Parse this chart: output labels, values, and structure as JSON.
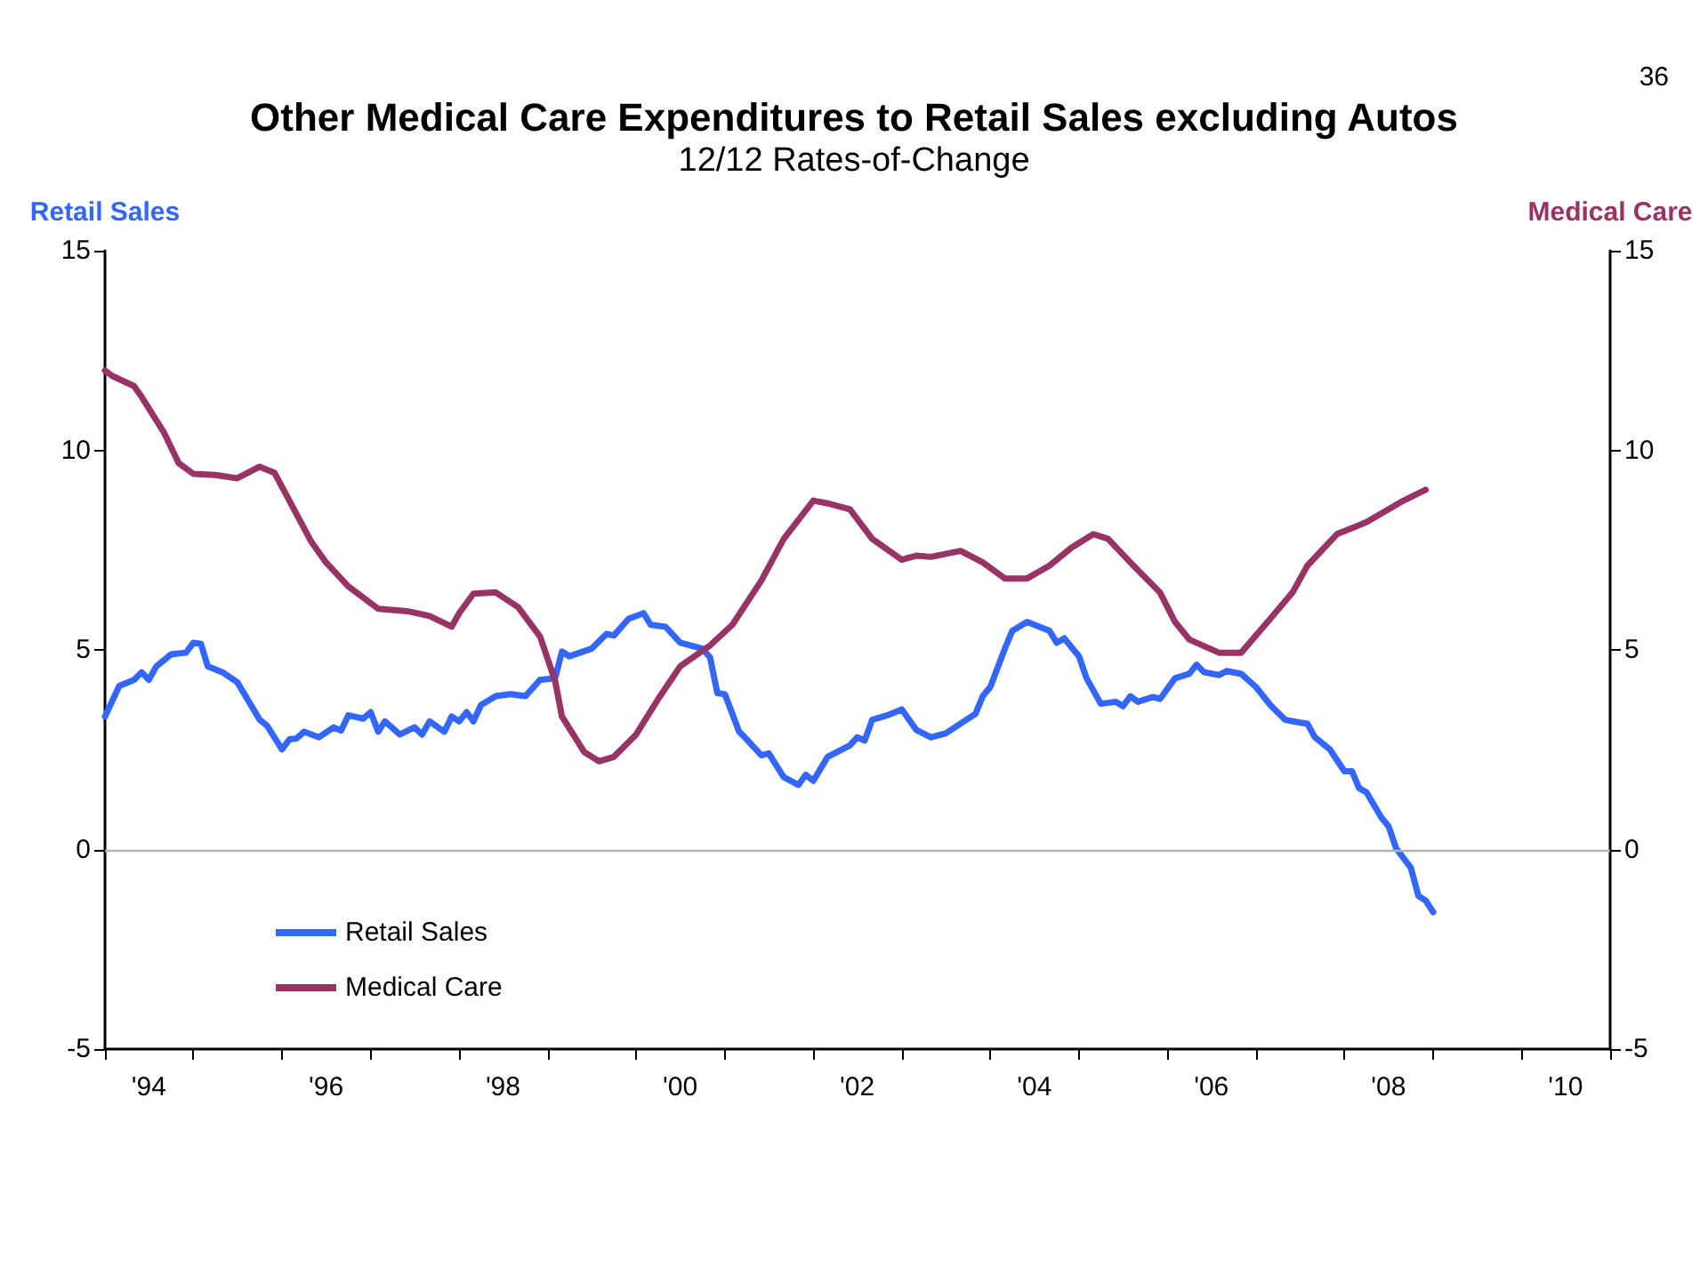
{
  "chart_data": {
    "type": "line",
    "title": "Other Medical Care Expenditures to Retail Sales excluding Autos",
    "subtitle": "12/12 Rates-of-Change",
    "ylabel": "Retail Sales",
    "y2label": "Medical Care",
    "annotations": [
      "36"
    ],
    "xlim": [
      "1994-01",
      "2011-01"
    ],
    "xticks": [
      {
        "value": "1994",
        "label": null
      },
      {
        "value": "1994-07",
        "label": "'94"
      },
      {
        "value": "1995",
        "label": null
      },
      {
        "value": "1996",
        "label": null
      },
      {
        "value": "1996-07",
        "label": "'96"
      },
      {
        "value": "1997",
        "label": null
      },
      {
        "value": "1998",
        "label": null
      },
      {
        "value": "1998-07",
        "label": "'98"
      },
      {
        "value": "1999",
        "label": null
      },
      {
        "value": "2000",
        "label": null
      },
      {
        "value": "2000-07",
        "label": "'00"
      },
      {
        "value": "2001",
        "label": null
      },
      {
        "value": "2002",
        "label": null
      },
      {
        "value": "2002-07",
        "label": "'02"
      },
      {
        "value": "2003",
        "label": null
      },
      {
        "value": "2004",
        "label": null
      },
      {
        "value": "2004-07",
        "label": "'04"
      },
      {
        "value": "2005",
        "label": null
      },
      {
        "value": "2006",
        "label": null
      },
      {
        "value": "2006-07",
        "label": "'06"
      },
      {
        "value": "2007",
        "label": null
      },
      {
        "value": "2008",
        "label": null
      },
      {
        "value": "2008-07",
        "label": "'08"
      },
      {
        "value": "2009",
        "label": null
      },
      {
        "value": "2010",
        "label": null
      },
      {
        "value": "2010-07",
        "label": "'10"
      },
      {
        "value": "2011",
        "label": null
      }
    ],
    "ylim": [
      -5,
      15
    ],
    "yticks": [
      -5,
      0,
      5,
      10,
      15
    ],
    "y2lim": [
      -5,
      15
    ],
    "y2ticks": [
      -5,
      0,
      5,
      10,
      15
    ],
    "grid": false,
    "legend": "bottom left",
    "marker": "none",
    "line_style": "solid",
    "ref_lines": [
      {
        "axis": "y",
        "value": 0,
        "label": null,
        "color": "#b4b4b4"
      }
    ],
    "series": [
      {
        "name": "Retail Sales",
        "color": "#3366ff",
        "x": [
          "1994-01",
          "1994-03",
          "1994-05",
          "1994-06",
          "1994-07",
          "1994-08",
          "1994-10",
          "1994-12",
          "1995-01",
          "1995-02",
          "1995-03",
          "1995-05",
          "1995-07",
          "1995-10",
          "1995-11",
          "1996-01",
          "1996-02",
          "1996-03",
          "1996-04",
          "1996-06",
          "1996-08",
          "1996-09",
          "1996-10",
          "1996-12",
          "1997-01",
          "1997-02",
          "1997-03",
          "1997-05",
          "1997-07",
          "1997-08",
          "1997-09",
          "1997-11",
          "1997-12",
          "1998-01",
          "1998-02",
          "1998-03",
          "1998-04",
          "1998-06",
          "1998-08",
          "1998-10",
          "1998-12",
          "1999-02",
          "1999-03",
          "1999-04",
          "1999-07",
          "1999-09",
          "1999-10",
          "1999-12",
          "2000-02",
          "2000-03",
          "2000-05",
          "2000-07",
          "2000-10",
          "2000-11",
          "2000-12",
          "2001-01",
          "2001-03",
          "2001-04",
          "2001-06",
          "2001-07",
          "2001-09",
          "2001-11",
          "2001-12",
          "2002-01",
          "2002-03",
          "2002-06",
          "2002-07",
          "2002-08",
          "2002-09",
          "2002-11",
          "2003-01",
          "2003-03",
          "2003-05",
          "2003-07",
          "2003-11",
          "2003-12",
          "2004-01",
          "2004-03",
          "2004-04",
          "2004-06",
          "2004-09",
          "2004-10",
          "2004-11",
          "2005-01",
          "2005-02",
          "2005-04",
          "2005-06",
          "2005-07",
          "2005-08",
          "2005-09",
          "2005-11",
          "2005-12",
          "2006-02",
          "2006-04",
          "2006-05",
          "2006-06",
          "2006-08",
          "2006-09",
          "2006-11",
          "2007-01",
          "2007-03",
          "2007-05",
          "2007-07",
          "2007-08",
          "2007-09",
          "2007-11",
          "2008-01",
          "2008-02",
          "2008-03",
          "2008-04",
          "2008-06",
          "2008-07",
          "2008-08",
          "2008-10",
          "2008-11",
          "2008-12",
          "2009-01"
        ],
        "values": [
          3.33,
          4.1,
          4.25,
          4.44,
          4.25,
          4.59,
          4.89,
          4.93,
          5.18,
          5.15,
          4.59,
          4.44,
          4.19,
          3.25,
          3.1,
          2.51,
          2.76,
          2.78,
          2.95,
          2.81,
          3.06,
          2.98,
          3.36,
          3.28,
          3.44,
          2.95,
          3.21,
          2.88,
          3.06,
          2.88,
          3.21,
          2.95,
          3.33,
          3.21,
          3.44,
          3.21,
          3.62,
          3.84,
          3.89,
          3.84,
          4.25,
          4.29,
          4.96,
          4.84,
          5.03,
          5.4,
          5.36,
          5.78,
          5.92,
          5.63,
          5.58,
          5.18,
          5.03,
          4.81,
          3.92,
          3.89,
          2.95,
          2.76,
          2.36,
          2.41,
          1.81,
          1.62,
          1.87,
          1.72,
          2.32,
          2.61,
          2.81,
          2.73,
          3.25,
          3.36,
          3.51,
          3.0,
          2.81,
          2.91,
          3.4,
          3.84,
          4.07,
          5.03,
          5.48,
          5.7,
          5.48,
          5.18,
          5.29,
          4.84,
          4.29,
          3.65,
          3.7,
          3.59,
          3.84,
          3.7,
          3.82,
          3.77,
          4.29,
          4.4,
          4.63,
          4.44,
          4.37,
          4.47,
          4.4,
          4.07,
          3.62,
          3.25,
          3.18,
          3.15,
          2.81,
          2.51,
          1.96,
          1.96,
          1.54,
          1.43,
          0.8,
          0.58,
          0.03,
          -0.46,
          -1.16,
          -1.28,
          -1.57
        ]
      },
      {
        "name": "Medical Care",
        "color": "#993366",
        "axis": "y2",
        "x": [
          "1994-01",
          "1994-02",
          "1994-05",
          "1994-06",
          "1994-09",
          "1994-11",
          "1995-01",
          "1995-04",
          "1995-07",
          "1995-10",
          "1995-12",
          "1996-05",
          "1996-07",
          "1996-10",
          "1997-02",
          "1997-06",
          "1997-09",
          "1997-12",
          "1998-01",
          "1998-03",
          "1998-06",
          "1998-09",
          "1998-12",
          "1999-02",
          "1999-03",
          "1999-06",
          "1999-08",
          "1999-10",
          "2000-01",
          "2000-04",
          "2000-07",
          "2000-11",
          "2001-02",
          "2001-06",
          "2001-09",
          "2002-01",
          "2002-03",
          "2002-06",
          "2002-09",
          "2003-01",
          "2003-03",
          "2003-05",
          "2003-09",
          "2003-12",
          "2004-03",
          "2004-06",
          "2004-09",
          "2004-12",
          "2005-03",
          "2005-05",
          "2005-08",
          "2005-12",
          "2006-02",
          "2006-04",
          "2006-08",
          "2006-11",
          "2007-03",
          "2007-06",
          "2007-08",
          "2007-12",
          "2008-04",
          "2008-09",
          "2008-12"
        ],
        "values": [
          12.0,
          11.86,
          11.61,
          11.34,
          10.45,
          9.68,
          9.41,
          9.38,
          9.3,
          9.59,
          9.44,
          7.71,
          7.19,
          6.59,
          6.03,
          5.97,
          5.85,
          5.58,
          5.92,
          6.41,
          6.44,
          6.07,
          5.33,
          4.22,
          3.33,
          2.44,
          2.21,
          2.32,
          2.88,
          3.77,
          4.59,
          5.11,
          5.63,
          6.74,
          7.78,
          8.74,
          8.67,
          8.52,
          7.78,
          7.26,
          7.36,
          7.33,
          7.48,
          7.19,
          6.79,
          6.79,
          7.11,
          7.56,
          7.9,
          7.78,
          7.19,
          6.44,
          5.7,
          5.26,
          4.93,
          4.93,
          5.78,
          6.44,
          7.11,
          7.9,
          8.2,
          8.74,
          9.01
        ]
      }
    ]
  }
}
